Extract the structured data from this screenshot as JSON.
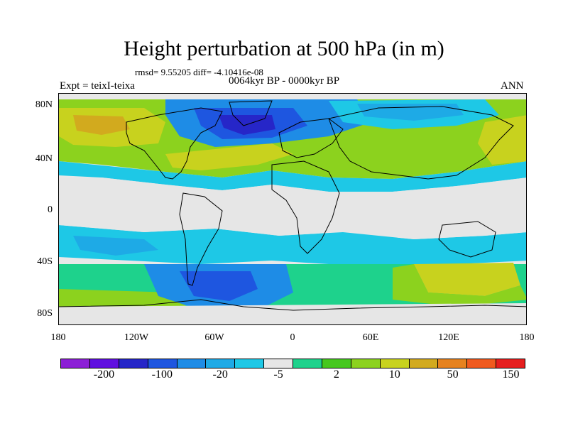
{
  "title": "Height perturbation at 500 hPa (in m)",
  "stats": "rmsd= 9.55205 diff= -4.10416e-08",
  "period": "0064kyr BP - 0000kyr BP",
  "experiment": "Expt = teixI-teixa",
  "season": "ANN",
  "lat_labels": [
    "80N",
    "40N",
    "0",
    "40S",
    "80S"
  ],
  "lon_labels": [
    "180",
    "120W",
    "60W",
    "0",
    "60E",
    "120E",
    "180"
  ],
  "colorbar": {
    "colors": [
      "#8c1fd6",
      "#6010e0",
      "#2626c8",
      "#1e56e0",
      "#1e8ce6",
      "#1eaae6",
      "#1ec8e6",
      "#e6e6e6",
      "#1ed28c",
      "#46c81e",
      "#8cd21e",
      "#c8d21e",
      "#d2aa1e",
      "#e6821e",
      "#f05a1e",
      "#e61e1e"
    ],
    "labels": [
      "-200",
      "-100",
      "-20",
      "-5",
      "2",
      "10",
      "50",
      "150"
    ]
  }
}
